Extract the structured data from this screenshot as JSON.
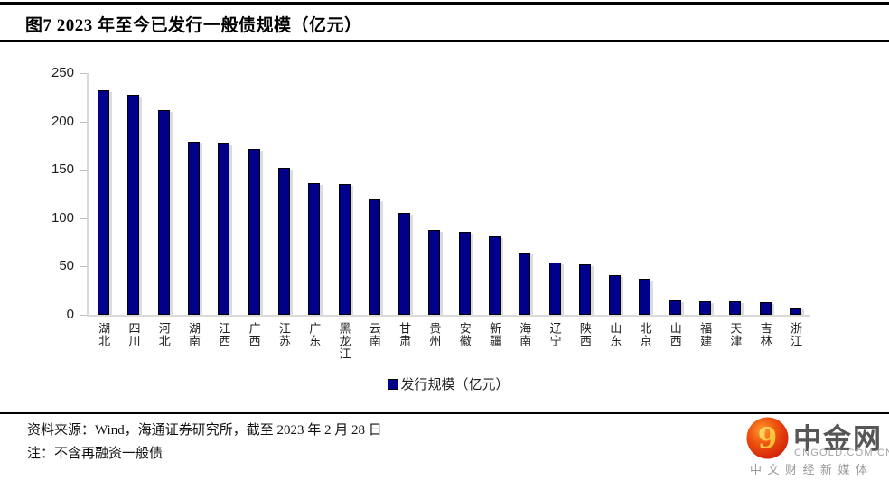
{
  "header": {
    "title": "图7  2023 年至今已发行一般债规模（亿元）"
  },
  "chart_data": {
    "type": "bar",
    "title": "2023 年至今已发行一般债规模（亿元）",
    "categories": [
      "湖北",
      "四川",
      "河北",
      "湖南",
      "江西",
      "广西",
      "江苏",
      "广东",
      "黑龙江",
      "云南",
      "甘肃",
      "贵州",
      "安徽",
      "新疆",
      "海南",
      "辽宁",
      "陕西",
      "山东",
      "北京",
      "山西",
      "福建",
      "天津",
      "吉林",
      "浙江"
    ],
    "values": [
      232,
      228,
      212,
      179,
      177,
      172,
      152,
      136,
      135,
      119,
      105,
      88,
      86,
      81,
      64,
      54,
      52,
      41,
      37,
      15,
      14,
      14,
      13,
      7
    ],
    "series_name": "发行规模（亿元）",
    "xlabel": "",
    "ylabel": "",
    "ylim": [
      0,
      250
    ],
    "yticks": [
      0,
      50,
      100,
      150,
      200,
      250
    ],
    "grid": false,
    "legend_position": "bottom",
    "bar_color": "#00008B",
    "bar_border_color": "#000000",
    "axis_color": "#d9d9d9"
  },
  "legend": {
    "label": "发行规模（亿元）"
  },
  "footer": {
    "source": "资料来源：Wind，海通证券研究所，截至 2023 年 2 月 28 日",
    "note": "注：不含再融资一般债"
  },
  "logo": {
    "name": "中金网",
    "domain": "CNGOLD.COM.CN",
    "tagline": "中文财经新媒体",
    "mark_icon": "gold-nine-swirl-in-red-circle",
    "accent_color": "#e43312",
    "gold_color": "#ffd24a"
  }
}
